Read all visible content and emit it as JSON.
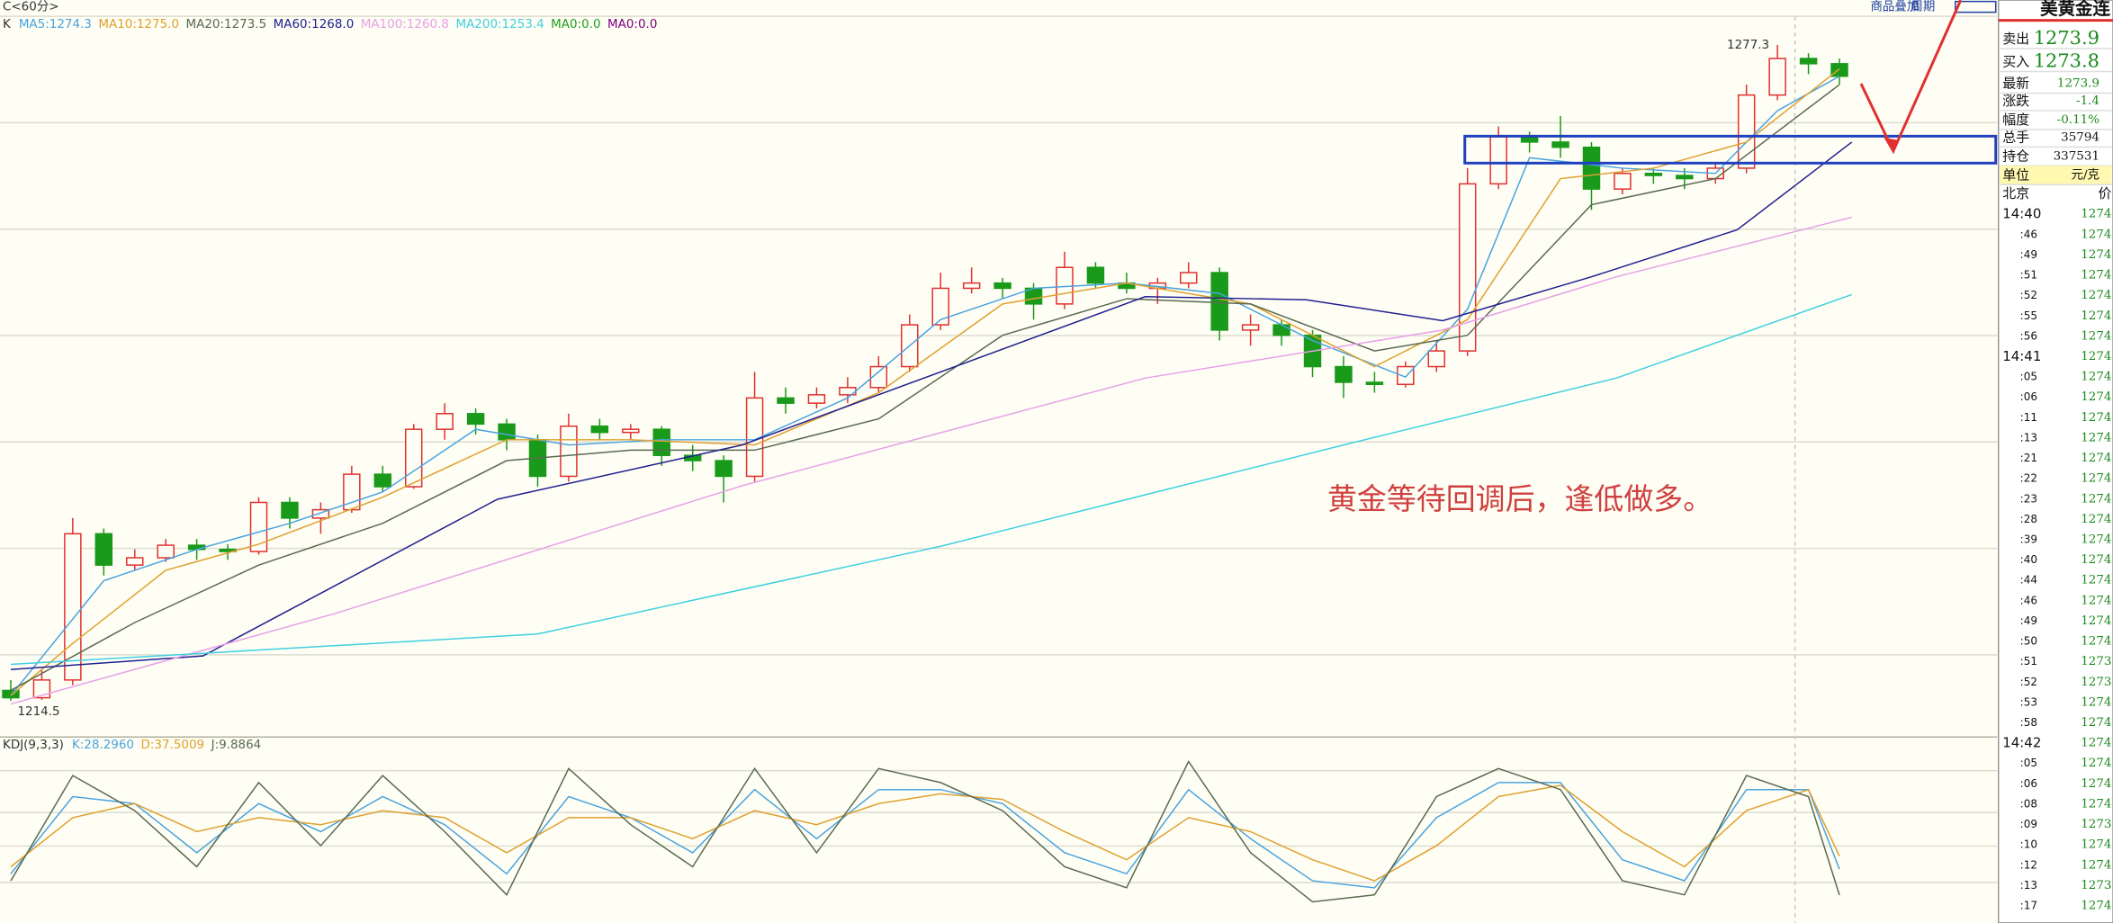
{
  "header": {
    "period": "C<60分>",
    "buttons": [
      "商品叠加",
      "周期"
    ]
  },
  "quote": {
    "title": "美黄金连",
    "rows": [
      {
        "label": "卖出",
        "value": 1273.9
      },
      {
        "label": "买入",
        "value": 1273.8
      },
      {
        "label": "最新",
        "value": 1273.9
      },
      {
        "label": "涨跌",
        "value": -1.4
      },
      {
        "label": "幅度",
        "value": "-0.11%"
      },
      {
        "label": "总手",
        "value": 35794
      },
      {
        "label": "持仓",
        "value": 337531
      },
      {
        "label": "单位",
        "value": "元/克"
      }
    ],
    "ticks_header": [
      "北京",
      "价"
    ],
    "ticks": [
      [
        "14:40",
        1274
      ],
      [
        ":46",
        1274
      ],
      [
        ":49",
        1274
      ],
      [
        ":51",
        1274
      ],
      [
        ":52",
        1274
      ],
      [
        ":55",
        1274
      ],
      [
        ":56",
        1274
      ],
      [
        "14:41",
        1274
      ],
      [
        ":05",
        1274
      ],
      [
        ":06",
        1274
      ],
      [
        ":11",
        1274
      ],
      [
        ":13",
        1274
      ],
      [
        ":21",
        1274
      ],
      [
        ":22",
        1274
      ],
      [
        ":23",
        1274
      ],
      [
        ":28",
        1274
      ],
      [
        ":39",
        1274
      ],
      [
        ":40",
        1274
      ],
      [
        ":44",
        1274
      ],
      [
        ":46",
        1274
      ],
      [
        ":49",
        1274
      ],
      [
        ":50",
        1274
      ],
      [
        ":51",
        1273
      ],
      [
        ":52",
        1273
      ],
      [
        ":53",
        1274
      ],
      [
        ":58",
        1274
      ],
      [
        "14:42",
        1274
      ],
      [
        ":05",
        1274
      ],
      [
        ":06",
        1274
      ],
      [
        ":08",
        1274
      ],
      [
        ":09",
        1273
      ],
      [
        ":10",
        1274
      ],
      [
        ":12",
        1274
      ],
      [
        ":13",
        1273
      ],
      [
        ":17",
        1274
      ]
    ]
  },
  "chart_data": [
    {
      "type": "candlestick",
      "title": "K",
      "annotation": "黄金等待回调后，逢低做多。",
      "ylim": [
        1211.3,
        1280.3
      ],
      "up_color": "#e03030",
      "down_color": "#1a9a1a",
      "ohlc": [
        [
          1215.5,
          1216.5,
          1214.5,
          1214.8
        ],
        [
          1214.8,
          1217.5,
          1214.6,
          1216.5
        ],
        [
          1216.5,
          1232.0,
          1216.0,
          1230.5
        ],
        [
          1230.5,
          1231.0,
          1226.5,
          1227.5
        ],
        [
          1227.5,
          1229.0,
          1227.0,
          1228.2
        ],
        [
          1228.2,
          1230.0,
          1227.8,
          1229.4
        ],
        [
          1229.4,
          1230.0,
          1228.0,
          1229.0
        ],
        [
          1229.0,
          1229.5,
          1228.0,
          1228.8
        ],
        [
          1228.8,
          1234.0,
          1228.5,
          1233.5
        ],
        [
          1233.5,
          1234.0,
          1231.0,
          1232.0
        ],
        [
          1232.0,
          1233.5,
          1230.5,
          1232.8
        ],
        [
          1232.8,
          1237.0,
          1232.5,
          1236.2
        ],
        [
          1236.2,
          1237.0,
          1234.5,
          1235.0
        ],
        [
          1235.0,
          1241.0,
          1234.8,
          1240.5
        ],
        [
          1240.5,
          1243.0,
          1239.5,
          1242.0
        ],
        [
          1242.0,
          1242.5,
          1240.0,
          1241.0
        ],
        [
          1241.0,
          1241.5,
          1238.5,
          1239.5
        ],
        [
          1239.5,
          1240.0,
          1235.0,
          1236.0
        ],
        [
          1236.0,
          1242.0,
          1235.5,
          1240.8
        ],
        [
          1240.8,
          1241.5,
          1239.5,
          1240.2
        ],
        [
          1240.2,
          1241.0,
          1239.5,
          1240.5
        ],
        [
          1240.5,
          1240.8,
          1237.0,
          1238.0
        ],
        [
          1238.0,
          1239.0,
          1236.5,
          1237.5
        ],
        [
          1237.5,
          1238.0,
          1233.5,
          1236.0
        ],
        [
          1236.0,
          1246.0,
          1235.5,
          1243.5
        ],
        [
          1243.5,
          1244.5,
          1242.0,
          1243.0
        ],
        [
          1243.0,
          1244.5,
          1242.5,
          1243.8
        ],
        [
          1243.8,
          1245.5,
          1243.0,
          1244.5
        ],
        [
          1244.5,
          1247.5,
          1244.0,
          1246.5
        ],
        [
          1246.5,
          1251.5,
          1246.0,
          1250.5
        ],
        [
          1250.5,
          1255.5,
          1250.0,
          1254.0
        ],
        [
          1254.0,
          1256.0,
          1253.5,
          1254.5
        ],
        [
          1254.5,
          1255.0,
          1253.0,
          1254.0
        ],
        [
          1254.0,
          1254.5,
          1251.0,
          1252.5
        ],
        [
          1252.5,
          1257.5,
          1252.0,
          1256.0
        ],
        [
          1256.0,
          1256.5,
          1254.0,
          1254.5
        ],
        [
          1254.5,
          1255.5,
          1253.5,
          1254.0
        ],
        [
          1254.0,
          1255.0,
          1252.5,
          1254.5
        ],
        [
          1254.5,
          1256.5,
          1254.0,
          1255.5
        ],
        [
          1255.5,
          1256.0,
          1249.0,
          1250.0
        ],
        [
          1250.0,
          1251.5,
          1248.5,
          1250.5
        ],
        [
          1250.5,
          1251.0,
          1248.5,
          1249.5
        ],
        [
          1249.5,
          1250.0,
          1245.5,
          1246.5
        ],
        [
          1246.5,
          1247.5,
          1243.5,
          1245.0
        ],
        [
          1245.0,
          1246.0,
          1244.0,
          1244.8
        ],
        [
          1244.8,
          1247.0,
          1244.5,
          1246.5
        ],
        [
          1246.5,
          1249.0,
          1246.0,
          1248.0
        ],
        [
          1248.0,
          1265.5,
          1247.5,
          1264.0
        ],
        [
          1264.0,
          1269.5,
          1263.5,
          1268.5
        ],
        [
          1268.5,
          1269.0,
          1267.0,
          1268.0
        ],
        [
          1268.0,
          1270.5,
          1266.5,
          1267.5
        ],
        [
          1267.5,
          1268.0,
          1261.5,
          1263.5
        ],
        [
          1263.5,
          1265.5,
          1263.0,
          1265.0
        ],
        [
          1265.0,
          1265.5,
          1264.0,
          1264.8
        ],
        [
          1264.8,
          1265.5,
          1263.5,
          1264.5
        ],
        [
          1264.5,
          1266.0,
          1264.0,
          1265.5
        ],
        [
          1265.5,
          1273.5,
          1265.0,
          1272.5
        ],
        [
          1272.5,
          1277.3,
          1272.0,
          1276.0
        ],
        [
          1276.0,
          1276.5,
          1274.5,
          1275.5
        ],
        [
          1275.5,
          1276.0,
          1273.5,
          1274.3
        ]
      ],
      "series": [
        {
          "name": "MA5:1274.3",
          "color": "#4aa3df",
          "x": [
            0,
            3,
            6,
            9,
            12,
            15,
            18,
            21,
            24,
            27,
            30,
            33,
            36,
            39,
            42,
            45,
            47,
            49,
            52,
            55,
            57,
            59
          ],
          "values": [
            1215,
            1226,
            1229,
            1231.5,
            1234.5,
            1240.5,
            1239,
            1239.5,
            1239.5,
            1243.5,
            1251,
            1254,
            1254.5,
            1253.5,
            1249,
            1245.5,
            1252,
            1266.5,
            1265.5,
            1265,
            1271,
            1274.3
          ]
        },
        {
          "name": "MA10:1275.0",
          "color": "#e0a030",
          "x": [
            0,
            2,
            5,
            8,
            12,
            16,
            20,
            24,
            28,
            32,
            36,
            40,
            44,
            47,
            50,
            53,
            56,
            59
          ],
          "values": [
            1215,
            1220,
            1227,
            1229.5,
            1234,
            1239.5,
            1239.5,
            1239,
            1244,
            1252.5,
            1254.5,
            1252.5,
            1246.5,
            1251,
            1264.5,
            1265.5,
            1268,
            1275.0
          ]
        },
        {
          "name": "MA20:1273.5",
          "color": "#5a6a50",
          "x": [
            0,
            4,
            8,
            12,
            16,
            20,
            24,
            28,
            32,
            36,
            40,
            44,
            47,
            51,
            55,
            59
          ],
          "values": [
            1215.5,
            1222,
            1227.5,
            1231.5,
            1237.5,
            1238.5,
            1238.5,
            1241.5,
            1249.5,
            1253,
            1252.5,
            1248,
            1249.5,
            1262,
            1264.5,
            1273.5
          ]
        },
        {
          "name": "MA60:1268.0",
          "color": "#202090",
          "x": [
            0,
            6.2,
            15.7,
            23.6,
            36.6,
            41.8,
            46.2,
            51,
            55.7,
            59.4
          ],
          "values": [
            1217.5,
            1218.8,
            1233.8,
            1239.0,
            1253.2,
            1252.9,
            1250.9,
            1255.1,
            1259.6,
            1268.0
          ]
        },
        {
          "name": "MA100:1260.8",
          "color": "#e8a0e8",
          "x": [
            0,
            10.5,
            23.6,
            36.6,
            46.2,
            51.8,
            59.4
          ],
          "values": [
            1214.2,
            1222.9,
            1235.1,
            1245.4,
            1250.0,
            1255.1,
            1260.8
          ]
        },
        {
          "name": "MA200:1253.4",
          "color": "#40d0e0",
          "x": [
            0,
            17,
            30,
            43,
            51.8,
            59.4
          ],
          "values": [
            1218.0,
            1220.9,
            1229.3,
            1239.0,
            1245.4,
            1253.4
          ]
        },
        {
          "name": "MA0:0.0",
          "color": "#20a020",
          "x": [],
          "values": []
        },
        {
          "name": "MA0:0.0",
          "color": "#800080",
          "x": [],
          "values": []
        }
      ]
    },
    {
      "type": "line",
      "title": "KDJ(9,3,3)",
      "ylim": [
        -10,
        110
      ],
      "series": [
        {
          "name": "K:28.2960",
          "color": "#4aa3df",
          "x": [
            0,
            2,
            4,
            6,
            8,
            10,
            12,
            14,
            16,
            18,
            20,
            22,
            24,
            26,
            28,
            30,
            32,
            34,
            36,
            38,
            40,
            42,
            44,
            46,
            48,
            50,
            52,
            54,
            56,
            58,
            59
          ],
          "values": [
            25,
            80,
            75,
            40,
            75,
            55,
            80,
            60,
            25,
            80,
            65,
            40,
            85,
            50,
            85,
            85,
            75,
            40,
            25,
            85,
            50,
            20,
            15,
            65,
            90,
            90,
            35,
            20,
            85,
            85,
            28.296
          ]
        },
        {
          "name": "D:37.5009",
          "color": "#e0a030",
          "x": [
            0,
            2,
            4,
            6,
            8,
            10,
            12,
            14,
            16,
            18,
            20,
            22,
            24,
            26,
            28,
            30,
            32,
            34,
            36,
            38,
            40,
            42,
            44,
            46,
            48,
            50,
            52,
            54,
            56,
            58,
            59
          ],
          "values": [
            30,
            65,
            75,
            55,
            65,
            60,
            70,
            65,
            40,
            65,
            65,
            50,
            70,
            60,
            75,
            82,
            78,
            55,
            35,
            65,
            55,
            35,
            20,
            45,
            80,
            88,
            55,
            30,
            70,
            85,
            37.5009
          ]
        },
        {
          "name": "J:9.8864",
          "color": "#5a6a50",
          "x": [
            0,
            2,
            4,
            6,
            8,
            10,
            12,
            14,
            16,
            18,
            20,
            22,
            24,
            26,
            28,
            30,
            32,
            34,
            36,
            38,
            40,
            42,
            44,
            46,
            48,
            50,
            52,
            54,
            56,
            58,
            59
          ],
          "values": [
            20,
            95,
            70,
            30,
            90,
            45,
            95,
            55,
            10,
            100,
            60,
            30,
            100,
            40,
            100,
            90,
            70,
            30,
            15,
            105,
            40,
            5,
            10,
            80,
            100,
            85,
            20,
            10,
            95,
            80,
            9.8864
          ]
        }
      ]
    }
  ]
}
